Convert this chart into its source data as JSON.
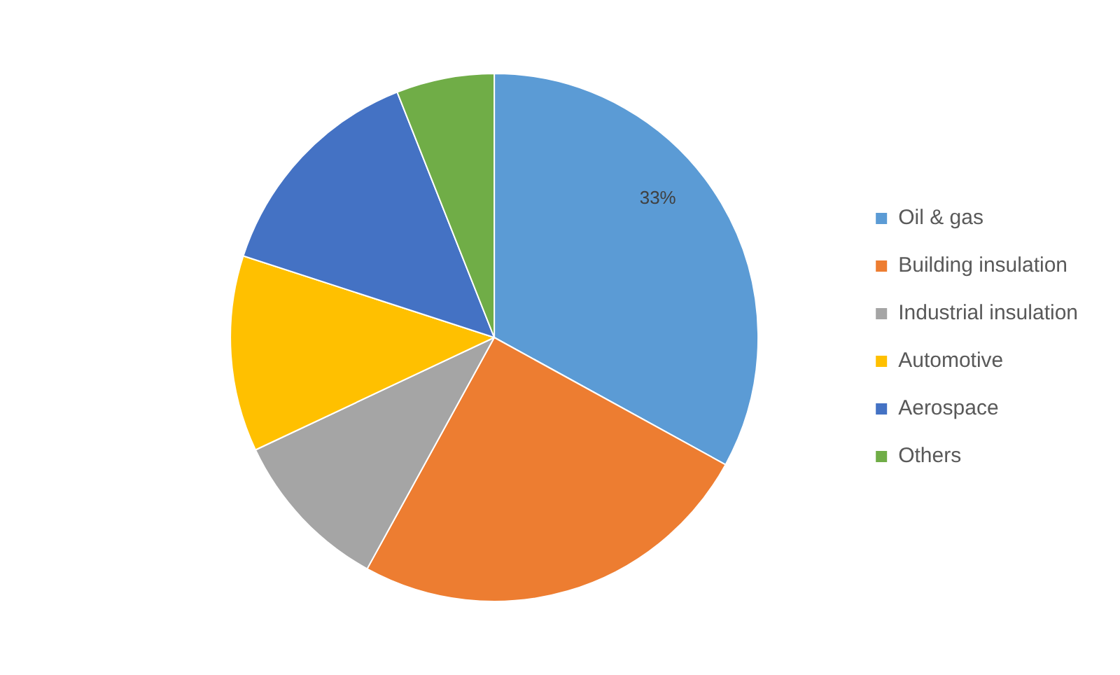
{
  "chart_data": {
    "type": "pie",
    "categories": [
      "Oil & gas",
      "Building insulation",
      "Industrial insulation",
      "Automotive",
      "Aerospace",
      "Others"
    ],
    "values": [
      33,
      25,
      10,
      12,
      14,
      6
    ],
    "colors": [
      "#5b9bd5",
      "#ed7d31",
      "#a5a5a5",
      "#ffc000",
      "#4472c4",
      "#70ad47"
    ],
    "value_labels": [
      "33%",
      null,
      null,
      null,
      null,
      null
    ],
    "legend": "right"
  }
}
